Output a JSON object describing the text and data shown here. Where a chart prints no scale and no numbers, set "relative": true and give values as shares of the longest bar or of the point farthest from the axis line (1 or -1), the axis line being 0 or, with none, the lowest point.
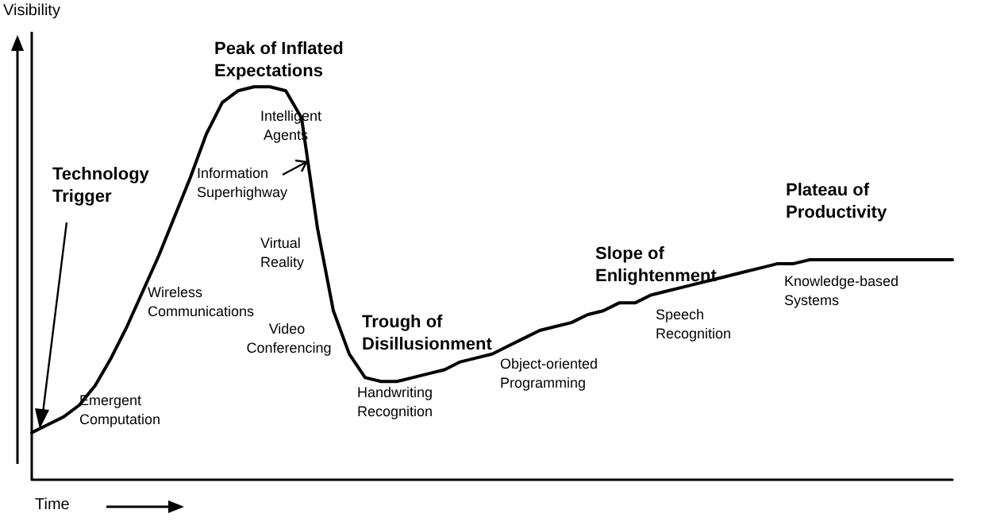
{
  "chart_data": {
    "type": "line",
    "relative": true,
    "xlabel": "Time",
    "ylabel": "Visibility",
    "color": "#000000",
    "marker": "none",
    "line_style": "solid",
    "grid": false,
    "categories": [
      null,
      null,
      null,
      null,
      null,
      null,
      null,
      null,
      null,
      null,
      null,
      null,
      null,
      null,
      null,
      null,
      null,
      null,
      null,
      null,
      null,
      null,
      null,
      null,
      null,
      null,
      null,
      null,
      null,
      null,
      null,
      null,
      null,
      null,
      null,
      null,
      null,
      null,
      null,
      null,
      null,
      null,
      null,
      null,
      null,
      null,
      null,
      null,
      null,
      null,
      null,
      null,
      null,
      null,
      null,
      null,
      null,
      null,
      null
    ],
    "values": [
      0.12,
      0.14,
      0.16,
      0.19,
      0.24,
      0.31,
      0.39,
      0.48,
      0.57,
      0.67,
      0.77,
      0.88,
      0.96,
      0.99,
      1.0,
      1.0,
      0.99,
      0.92,
      0.64,
      0.43,
      0.32,
      0.26,
      0.25,
      0.25,
      0.26,
      0.27,
      0.28,
      0.3,
      0.31,
      0.32,
      0.34,
      0.36,
      0.38,
      0.39,
      0.4,
      0.42,
      0.43,
      0.45,
      0.45,
      0.47,
      0.48,
      0.49,
      0.5,
      0.51,
      0.52,
      0.53,
      0.54,
      0.55,
      0.55,
      0.56,
      0.56,
      0.56,
      0.56,
      0.56,
      0.56,
      0.56,
      0.56,
      0.56,
      0.56
    ],
    "annotations": [
      "Technology Trigger",
      "Peak of Inflated Expectations",
      "Trough of Disillusionment",
      "Slope of Enlightenment",
      "Plateau of Productivity",
      "Intelligent Agents",
      "Information Superhighway",
      "Virtual Reality",
      "Wireless Communications",
      "Video Conferencing",
      "Emergent Computation",
      "Handwriting Recognition",
      "Object-oriented Programming",
      "Speech Recognition",
      "Knowledge-based Systems"
    ]
  }
}
